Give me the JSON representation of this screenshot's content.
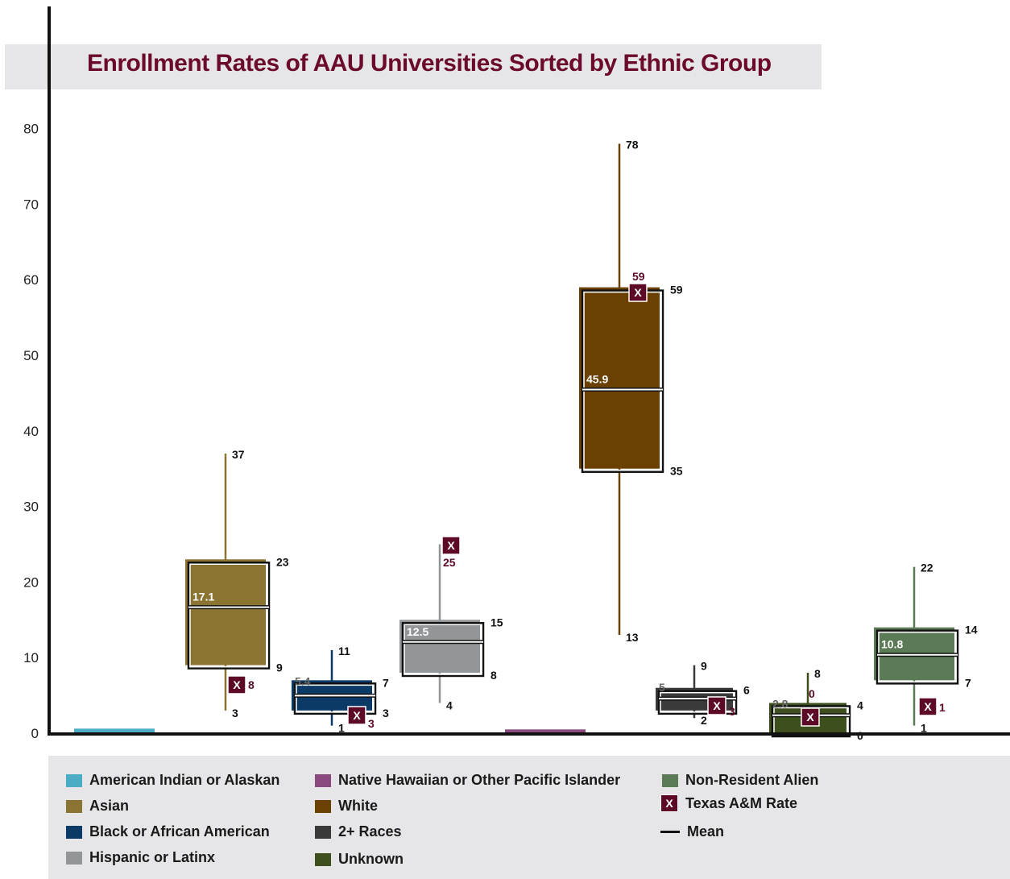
{
  "title": "Enrollment Rates of AAU Universities Sorted by Ethnic Group",
  "colors": {
    "american_indian": "#4bacc6",
    "asian": "#8b7331",
    "black": "#0b3a66",
    "hispanic": "#939698",
    "native_hawaiian": "#8b4a7e",
    "white": "#6b4103",
    "two_plus": "#3a3a3a",
    "unknown": "#3c4f1c",
    "nra": "#5a7b55",
    "tamu": "#5c0a25"
  },
  "chart_data": {
    "type": "box",
    "title": "Enrollment Rates of AAU Universities Sorted by Ethnic Group",
    "ylim": [
      0,
      80
    ],
    "yticks": [
      "0",
      "10",
      "20",
      "30",
      "40",
      "50",
      "60",
      "70",
      "80"
    ],
    "legend_position": "bottom",
    "series": [
      {
        "name": "American Indian or Alaskan",
        "key": "american_indian",
        "bar_only": true,
        "value": 0.6
      },
      {
        "name": "Asian",
        "key": "asian",
        "min": 3,
        "q1": 9,
        "mean": 17.1,
        "q3": 23,
        "max": 37,
        "tamu": 8,
        "label_min": "3",
        "label_q1": "9",
        "label_q3": "23",
        "label_max": "37",
        "label_mean": "17.1",
        "label_tamu": "8"
      },
      {
        "name": "Black or African American",
        "key": "black",
        "min": 1,
        "q1": 3,
        "mean": 5.4,
        "q3": 7,
        "max": 11,
        "tamu": 3,
        "label_min": "1",
        "label_q1": "3",
        "label_q3": "7",
        "label_max": "11",
        "label_mean": "5.4",
        "label_tamu": "3"
      },
      {
        "name": "Hispanic or Latinx",
        "key": "hispanic",
        "min": 4,
        "q1": 8,
        "mean": 12.5,
        "q3": 15,
        "max": 25,
        "tamu": 25,
        "label_min": "4",
        "label_q1": "8",
        "label_q3": "15",
        "label_max": "25",
        "label_mean": "12.5",
        "label_tamu": "25"
      },
      {
        "name": "Native Hawaiian or Other Pacific Islander",
        "key": "native_hawaiian",
        "bar_only": true,
        "value": 0.5
      },
      {
        "name": "White",
        "key": "white",
        "min": 13,
        "q1": 35,
        "mean": 45.9,
        "q3": 59,
        "max": 78,
        "tamu": 59,
        "label_min": "13",
        "label_q1": "35",
        "label_q3": "59",
        "label_max": "78",
        "label_mean": "45.9",
        "label_tamu": "59"
      },
      {
        "name": "2+ Races",
        "key": "two_plus",
        "min": 2,
        "q1": 3,
        "mean": 5,
        "q3": 6,
        "max": 9,
        "tamu": 3,
        "label_min": "2",
        "label_q1": "",
        "label_q3": "6",
        "label_max": "9",
        "label_mean": "5",
        "label_tamu": "3"
      },
      {
        "name": "Unknown",
        "key": "unknown",
        "min": 0,
        "q1": 0,
        "mean": 2.8,
        "q3": 4,
        "max": 8,
        "tamu": 0,
        "label_min": "",
        "label_q1": "0",
        "label_q3": "4",
        "label_max": "8",
        "label_mean": "2.8",
        "label_tamu": "0"
      },
      {
        "name": "Non-Resident Alien",
        "key": "nra",
        "min": 1,
        "q1": 7,
        "mean": 10.8,
        "q3": 14,
        "max": 22,
        "tamu": 1,
        "label_min": "1",
        "label_q1": "7",
        "label_q3": "14",
        "label_max": "22",
        "label_mean": "10.8",
        "label_tamu": "1"
      }
    ]
  },
  "legend": {
    "items": [
      {
        "label": "American Indian or Alaskan",
        "key": "american_indian"
      },
      {
        "label": "Asian",
        "key": "asian"
      },
      {
        "label": "Black or African American",
        "key": "black"
      },
      {
        "label": "Hispanic or Latinx",
        "key": "hispanic"
      },
      {
        "label": "Native Hawaiian or Other Pacific Islander",
        "key": "native_hawaiian"
      },
      {
        "label": "White",
        "key": "white"
      },
      {
        "label": "2+ Races",
        "key": "two_plus"
      },
      {
        "label": "Unknown",
        "key": "unknown"
      },
      {
        "label": "Non-Resident Alien",
        "key": "nra"
      }
    ],
    "tamu_label": "Texas A&M Rate",
    "tamu_marker": "X",
    "mean_label": "Mean"
  }
}
